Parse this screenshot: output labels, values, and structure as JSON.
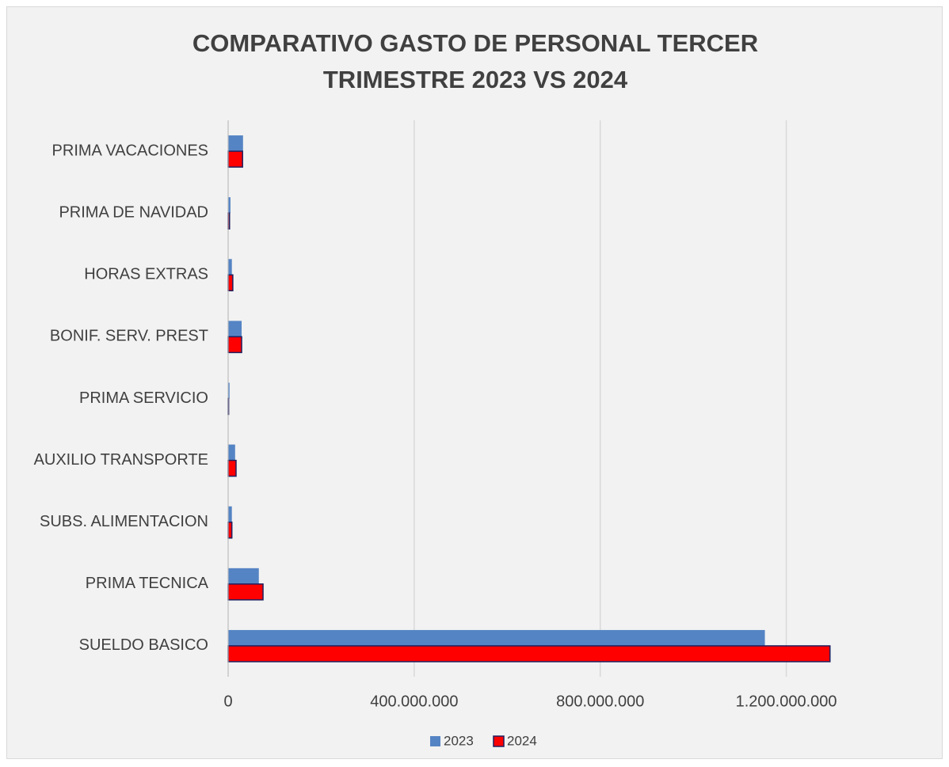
{
  "chart_data": {
    "type": "barh",
    "title": "COMPARATIVO GASTO DE PERSONAL TERCER TRIMESTRE 2023 VS 2024",
    "categories": [
      "SUELDO BASICO",
      "PRIMA TECNICA",
      "SUBS. ALIMENTACION",
      "AUXILIO TRANSPORTE",
      "PRIMA SERVICIO",
      "BONIF. SERV. PREST",
      "HORAS EXTRAS",
      "PRIMA DE NAVIDAD",
      "PRIMA VACACIONES"
    ],
    "series": [
      {
        "name": "2023",
        "color": "#5584c4",
        "values": [
          1154000000,
          66000000,
          8000000,
          15000000,
          3000000,
          29000000,
          8000000,
          5000000,
          32000000
        ]
      },
      {
        "name": "2024",
        "color": "#ff0000",
        "values": [
          1294000000,
          75000000,
          8000000,
          17000000,
          1000000,
          29000000,
          10000000,
          3000000,
          31000000
        ]
      }
    ],
    "xlim": [
      0,
      1400000000
    ],
    "xticks": [
      0,
      {
        "value": 400000000,
        "label": "400.000.000"
      },
      {
        "value": 800000000,
        "label": "800.000.000"
      },
      {
        "value": 1200000000,
        "label": "1.200.000.000"
      }
    ],
    "grid": true,
    "legend": "bottom"
  }
}
